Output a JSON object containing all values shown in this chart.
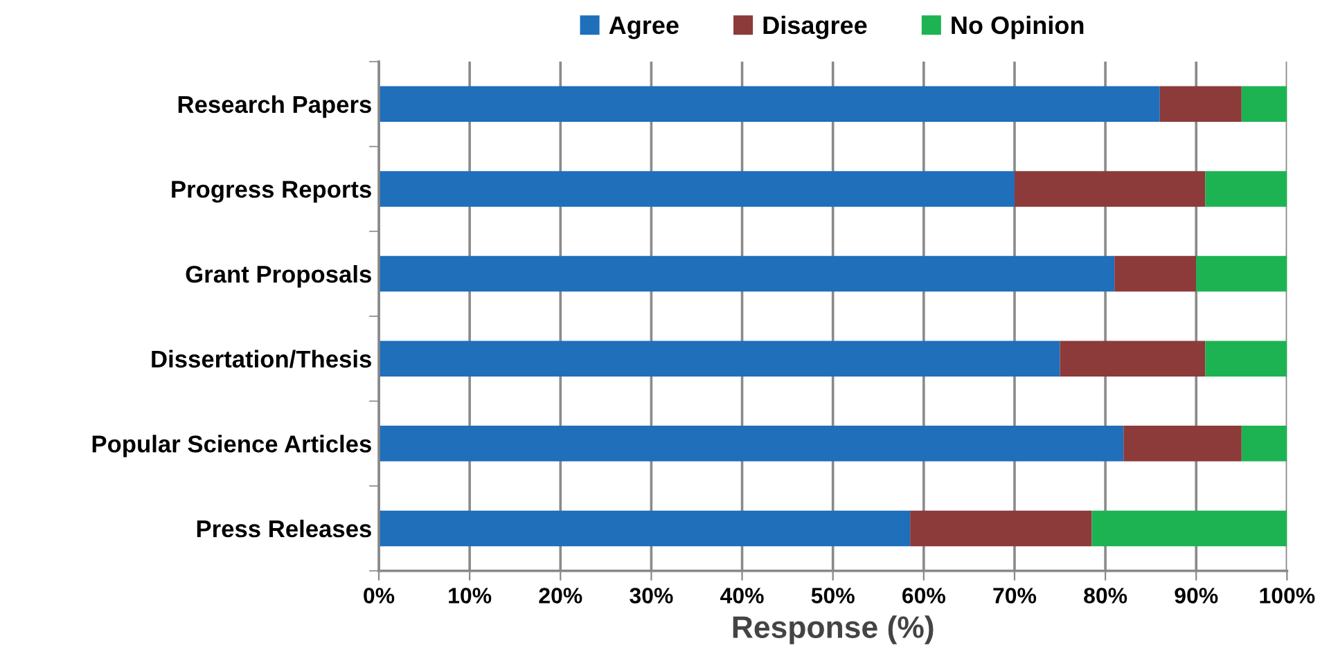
{
  "chart_data": {
    "type": "bar",
    "orientation": "horizontal",
    "stacked": true,
    "xlabel": "Response (%)",
    "categories": [
      "Research Papers",
      "Progress Reports",
      "Grant Proposals",
      "Dissertation/Thesis",
      "Popular Science Articles",
      "Press Releases"
    ],
    "series": [
      {
        "name": "Agree",
        "color": "#1f6fba",
        "values": [
          86,
          70,
          81,
          75,
          82,
          58.5
        ]
      },
      {
        "name": "Disagree",
        "color": "#8c3a3a",
        "values": [
          9,
          21,
          9,
          16,
          13,
          20
        ]
      },
      {
        "name": "No Opinion",
        "color": "#1db352",
        "values": [
          5,
          9,
          10,
          9,
          5,
          21.5
        ]
      }
    ],
    "xlim": [
      0,
      100
    ],
    "xticks": [
      {
        "value": 0,
        "label": "0%"
      },
      {
        "value": 10,
        "label": "10%"
      },
      {
        "value": 20,
        "label": "20%"
      },
      {
        "value": 30,
        "label": "30%"
      },
      {
        "value": 40,
        "label": "40%"
      },
      {
        "value": 50,
        "label": "50%"
      },
      {
        "value": 60,
        "label": "60%"
      },
      {
        "value": 70,
        "label": "70%"
      },
      {
        "value": 80,
        "label": "80%"
      },
      {
        "value": 90,
        "label": "90%"
      },
      {
        "value": 100,
        "label": "100%"
      }
    ],
    "grid": "x",
    "legend": "top"
  }
}
